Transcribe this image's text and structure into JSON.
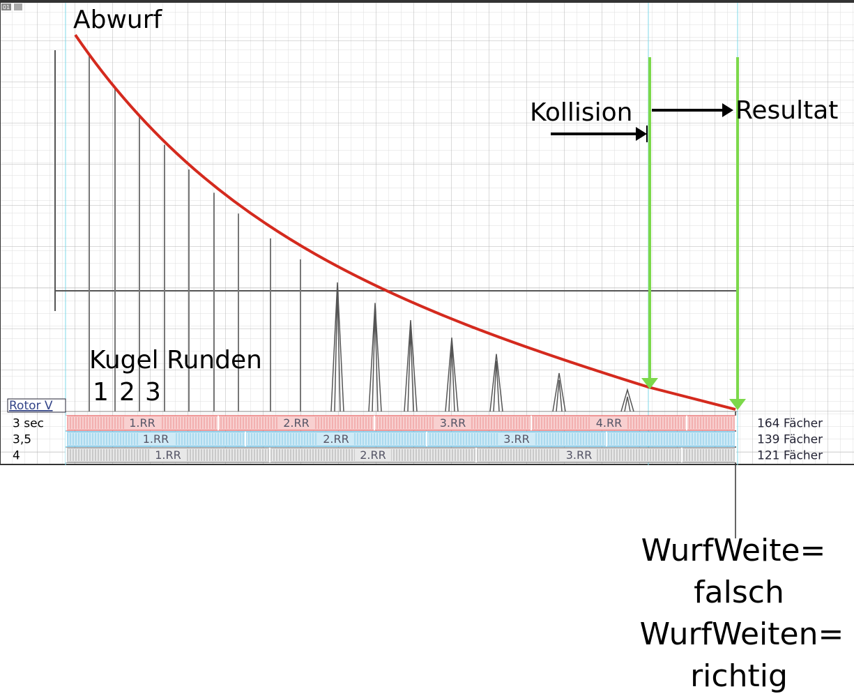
{
  "header": {
    "badge": "01"
  },
  "labels": {
    "abwurf": "Abwurf",
    "kollision": "Kollision",
    "resultat": "Resultat",
    "kugel_runden": "Kugel Runden",
    "digits": [
      "1",
      "2",
      "3"
    ],
    "rotor": "Rotor V"
  },
  "rows": [
    {
      "speed": "3 sec",
      "rounds": [
        "1.RR",
        "2.RR",
        "3.RR",
        "4.RR"
      ],
      "count": "164 Fächer"
    },
    {
      "speed": "3,5",
      "rounds": [
        "1.RR",
        "2.RR",
        "3.RR"
      ],
      "count": "139 Fächer"
    },
    {
      "speed": "4",
      "rounds": [
        "1.RR",
        "2.RR",
        "3.RR"
      ],
      "count": "121 Fächer"
    }
  ],
  "notes": [
    "WurfWeite=",
    "falsch",
    "WurfWeiten=",
    "richtig"
  ]
}
